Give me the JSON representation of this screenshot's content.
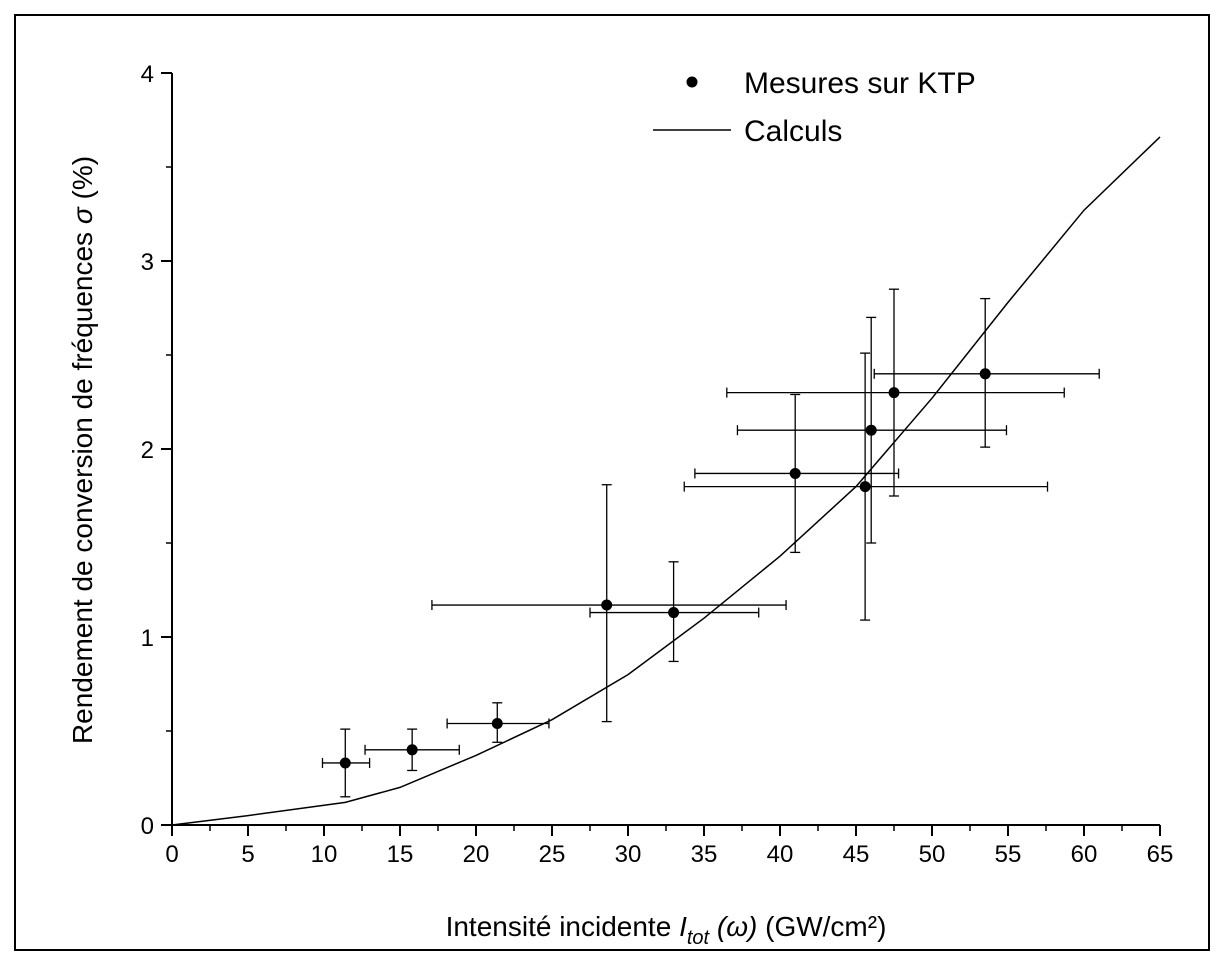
{
  "chart_data": {
    "type": "scatter",
    "xlim": [
      0,
      65
    ],
    "ylim": [
      0,
      4
    ],
    "x_ticks": [
      0,
      5,
      10,
      15,
      20,
      25,
      30,
      35,
      40,
      45,
      50,
      55,
      60,
      65
    ],
    "y_ticks": [
      0,
      1,
      2,
      3,
      4
    ],
    "x_tick_labels": [
      "0",
      "5",
      "10",
      "15",
      "20",
      "25",
      "30",
      "35",
      "40",
      "45",
      "50",
      "55",
      "60",
      "65"
    ],
    "y_tick_labels": [
      "0",
      "1",
      "2",
      "3",
      "4"
    ],
    "xlabel": {
      "prefix": "Intensité incidente ",
      "symbol": "I",
      "subscript": "tot",
      "argument": " (ω)",
      "unit": " (GW/cm²)"
    },
    "ylabel": {
      "prefix": "Rendement de conversion de fréquences ",
      "symbol": "σ",
      "unit": " (%)"
    },
    "grid": false,
    "legend_position": "top-right",
    "series": [
      {
        "name": "Mesures sur KTP",
        "kind": "points-with-errorbars",
        "points": [
          {
            "x": 11.4,
            "y": 0.33,
            "xerr": [
              9.9,
              13.0
            ],
            "yerr": [
              0.15,
              0.51
            ]
          },
          {
            "x": 15.8,
            "y": 0.4,
            "xerr": [
              12.7,
              18.9
            ],
            "yerr": [
              0.29,
              0.51
            ]
          },
          {
            "x": 21.4,
            "y": 0.54,
            "xerr": [
              18.1,
              24.8
            ],
            "yerr": [
              0.44,
              0.65
            ]
          },
          {
            "x": 28.6,
            "y": 1.17,
            "xerr": [
              17.1,
              40.4
            ],
            "yerr": [
              0.55,
              1.81
            ]
          },
          {
            "x": 33.0,
            "y": 1.13,
            "xerr": [
              27.5,
              38.6
            ],
            "yerr": [
              0.87,
              1.4
            ]
          },
          {
            "x": 41.0,
            "y": 1.87,
            "xerr": [
              34.4,
              47.8
            ],
            "yerr": [
              1.45,
              2.29
            ]
          },
          {
            "x": 45.6,
            "y": 1.8,
            "xerr": [
              33.7,
              57.6
            ],
            "yerr": [
              1.09,
              2.51
            ]
          },
          {
            "x": 46.0,
            "y": 2.1,
            "xerr": [
              37.2,
              54.9
            ],
            "yerr": [
              1.5,
              2.7
            ]
          },
          {
            "x": 47.5,
            "y": 2.3,
            "xerr": [
              36.5,
              58.7
            ],
            "yerr": [
              1.75,
              2.85
            ]
          },
          {
            "x": 53.5,
            "y": 2.4,
            "xerr": [
              46.2,
              61.0
            ],
            "yerr": [
              2.01,
              2.8
            ]
          }
        ]
      },
      {
        "name": "Calculs",
        "kind": "line",
        "x": [
          0,
          5,
          11.4,
          15,
          20,
          25,
          30,
          35,
          40,
          45,
          50,
          55,
          60,
          65
        ],
        "y": [
          0,
          0.05,
          0.12,
          0.2,
          0.37,
          0.56,
          0.8,
          1.1,
          1.43,
          1.8,
          2.27,
          2.78,
          3.27,
          3.66
        ]
      }
    ]
  },
  "colors": {
    "ink": "#000000",
    "background": "#ffffff"
  }
}
